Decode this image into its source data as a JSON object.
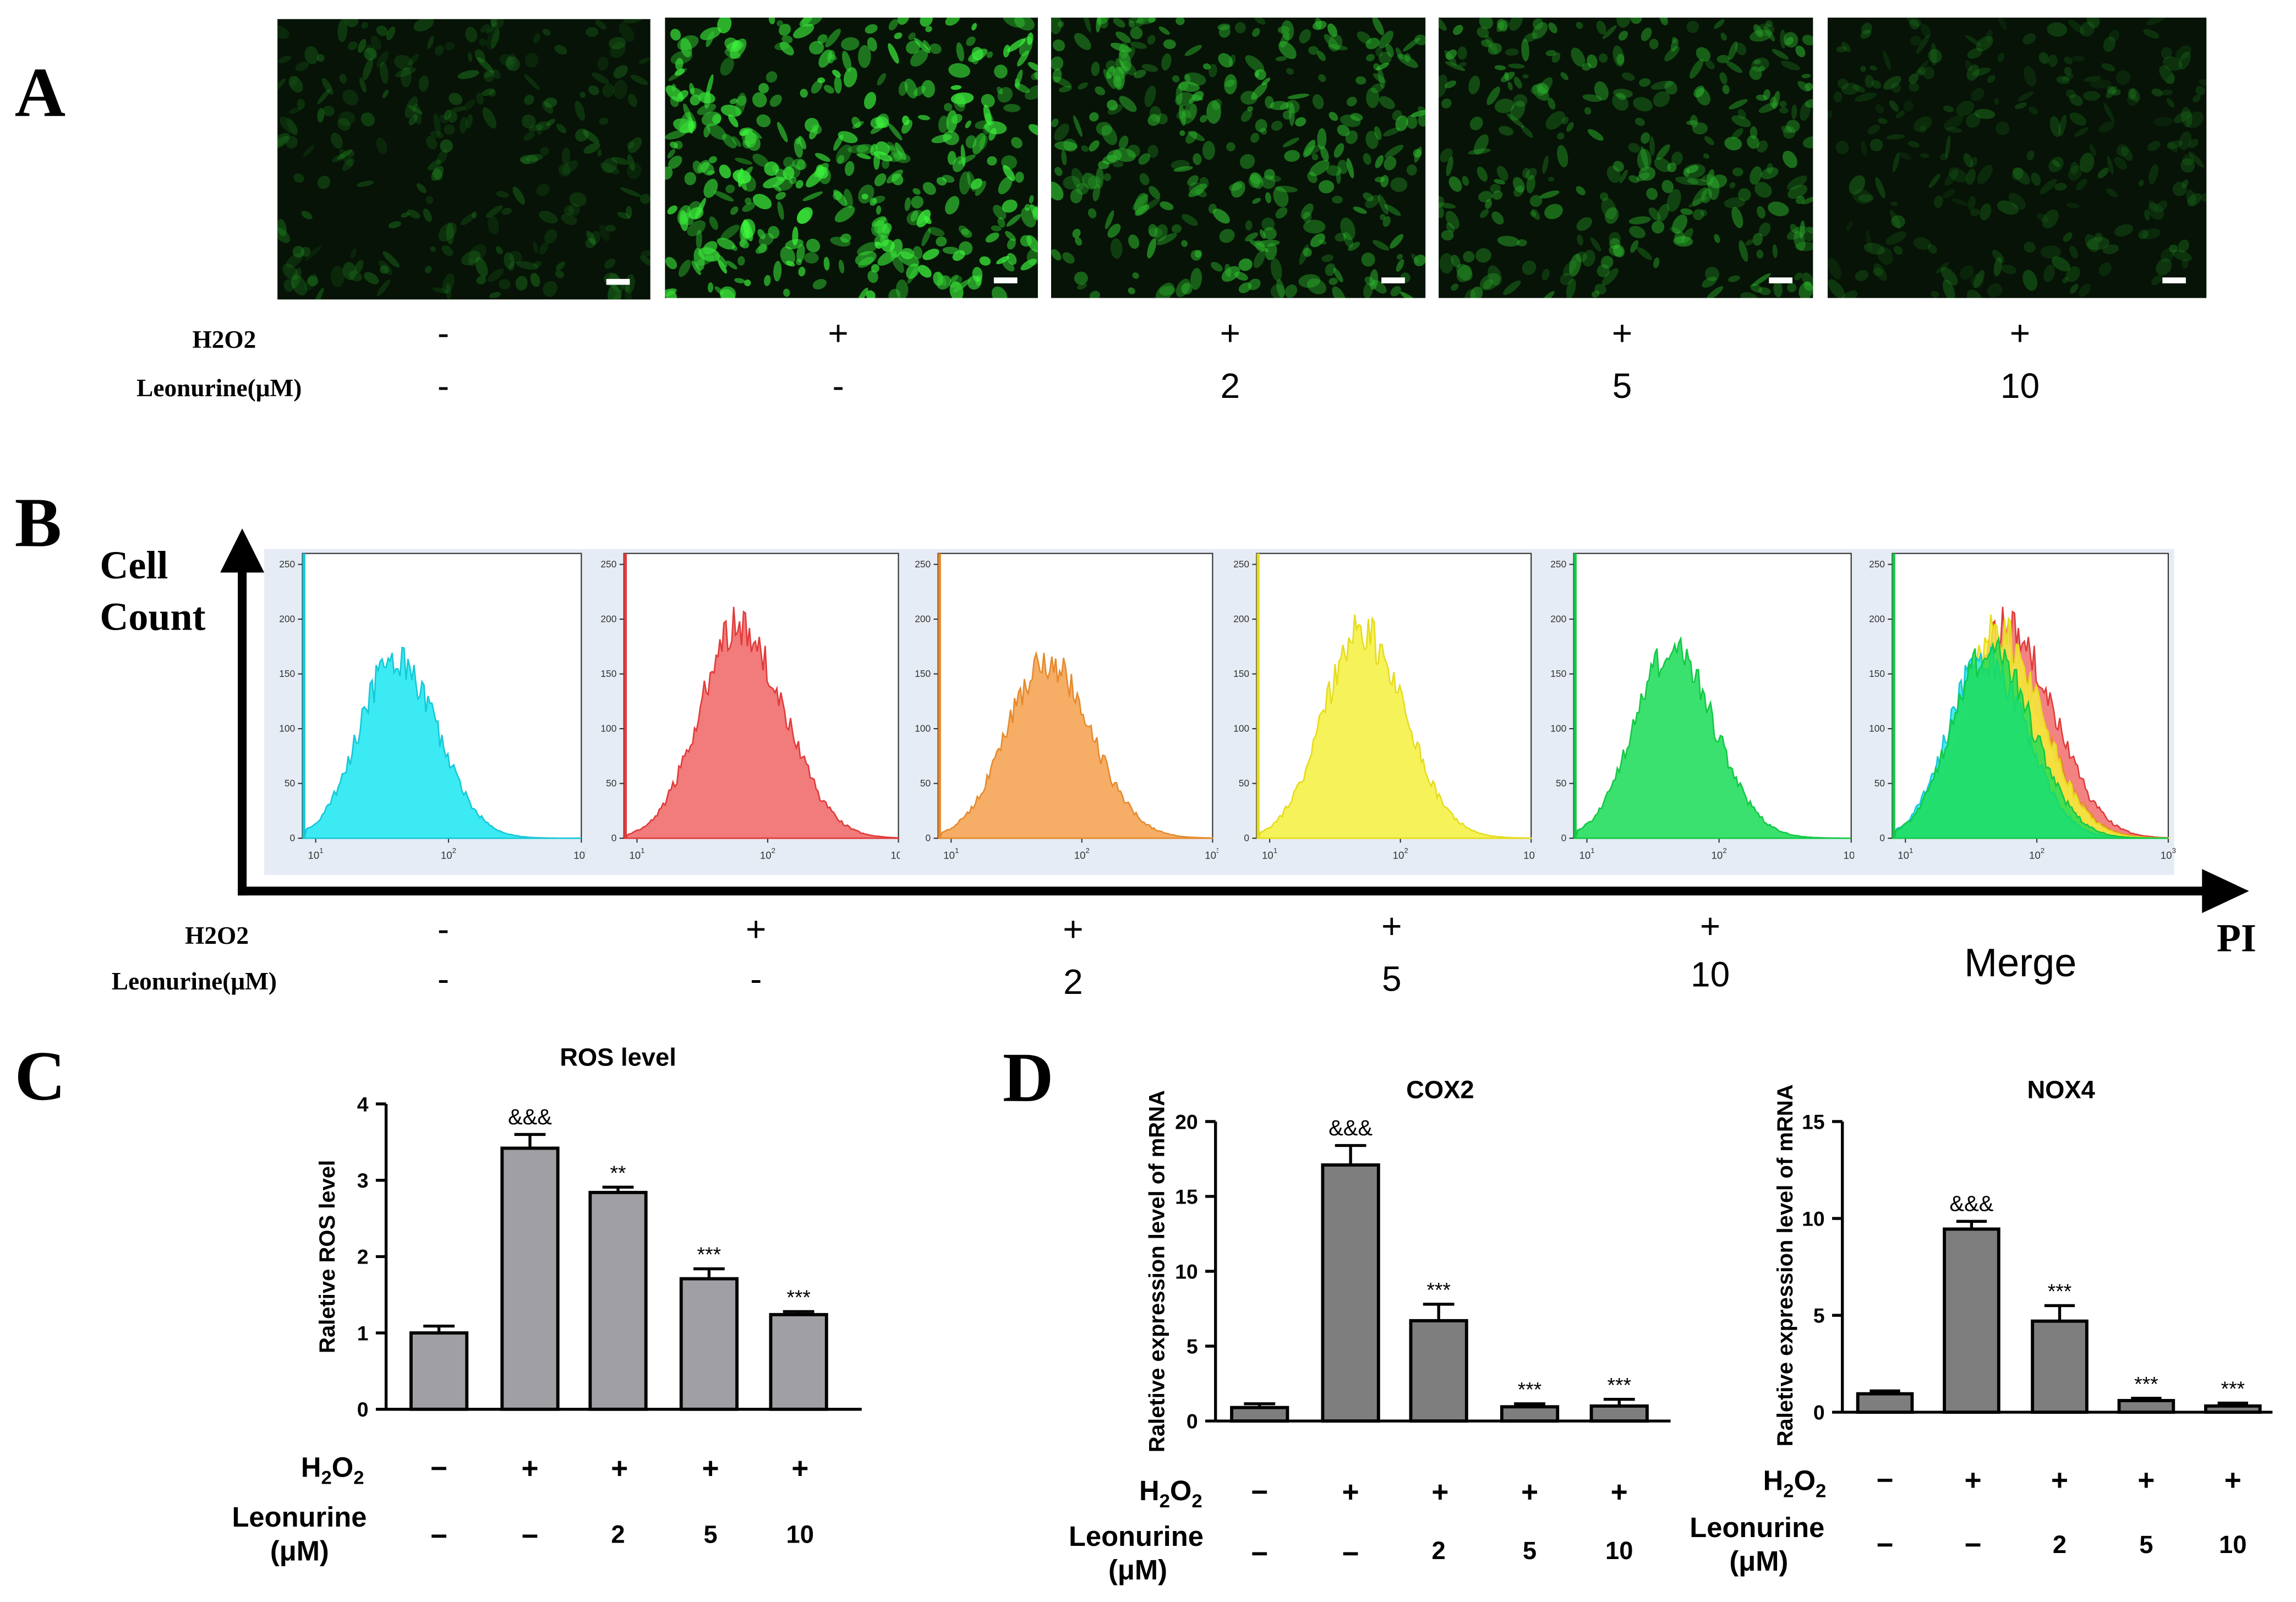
{
  "panel_labels": {
    "a": "A",
    "b": "B",
    "c": "C",
    "d": "D"
  },
  "colors": {
    "micrograph_bg": "#061306",
    "cell_green": "#3ee63e",
    "bar_c": "#a0a0a4",
    "bar_d": "#7e7e7e",
    "hist_cyan": "#19e6f0",
    "hist_red": "#f06464",
    "hist_orange": "#f5a04b",
    "hist_yellow": "#f5f03c",
    "hist_green": "#19dc55"
  },
  "panel_a": {
    "images": [
      {
        "name": "control",
        "brightness": 0.25
      },
      {
        "name": "h2o2",
        "brightness": 0.85
      },
      {
        "name": "h2o2-leo2",
        "brightness": 0.6
      },
      {
        "name": "h2o2-leo5",
        "brightness": 0.5
      },
      {
        "name": "h2o2-leo10",
        "brightness": 0.22
      }
    ],
    "row_labels": {
      "h2o2": "H2O2",
      "leonurine": "Leonurine(μM)"
    },
    "h2o2": [
      "-",
      "+",
      "+",
      "+",
      "+"
    ],
    "leonurine": [
      "-",
      "-",
      "2",
      "5",
      "10"
    ]
  },
  "panel_b": {
    "y_axis_label_line1": "Cell",
    "y_axis_label_line2": "Count",
    "x_axis_label": "PI",
    "merge_label": "Merge",
    "row_labels": {
      "h2o2": "H2O2",
      "leonurine": "Leonurine(μM)"
    },
    "h2o2": [
      "-",
      "+",
      "+",
      "+",
      "+"
    ],
    "leonurine": [
      "-",
      "-",
      "2",
      "5",
      "10"
    ],
    "chart_data": {
      "type": "area",
      "y_ticks": [
        "0",
        "50",
        "100",
        "150",
        "200",
        "250"
      ],
      "x_ticks_base": "10",
      "x_ticks_exp": [
        "1",
        "2",
        "3"
      ],
      "ylim": [
        0,
        260
      ],
      "xlim_log10": [
        0.9,
        3.0
      ],
      "series": [
        {
          "peak_log": 1.6,
          "peak": 165,
          "width": 0.27
        },
        {
          "peak_log": 1.78,
          "peak": 195,
          "width": 0.3
        },
        {
          "peak_log": 1.72,
          "peak": 162,
          "width": 0.3
        },
        {
          "peak_log": 1.7,
          "peak": 188,
          "width": 0.29
        },
        {
          "peak_log": 1.64,
          "peak": 172,
          "width": 0.28
        }
      ]
    }
  },
  "panel_c": {
    "chart_data": {
      "type": "bar",
      "title": "ROS level",
      "ylabel": "Raletive ROS level",
      "ylim": [
        0,
        4
      ],
      "y_ticks": [
        "0",
        "1",
        "2",
        "3",
        "4"
      ],
      "values": [
        1.0,
        3.42,
        2.84,
        1.71,
        1.24
      ],
      "errors": [
        0.09,
        0.18,
        0.07,
        0.13,
        0.04
      ],
      "annotations": [
        "",
        "&&&",
        "**",
        "***",
        "***"
      ]
    },
    "h2o2_label": "H",
    "h2o2_sub": "2",
    "h2o2_o": "O",
    "h2o2_sub2": "2",
    "leo_label_1": "Leonurine",
    "leo_label_2": "(μM)",
    "h2o2": [
      "−",
      "+",
      "+",
      "+",
      "+"
    ],
    "leonurine": [
      "−",
      "−",
      "2",
      "5",
      "10"
    ]
  },
  "panel_d": {
    "ylabel": "Raletive expression level of mRNA",
    "charts": [
      {
        "type": "bar",
        "title": "COX2",
        "ylim": [
          0,
          20
        ],
        "y_ticks": [
          "0",
          "5",
          "10",
          "15",
          "20"
        ],
        "values": [
          0.9,
          17.1,
          6.7,
          0.95,
          1.0
        ],
        "errors": [
          0.25,
          1.3,
          1.1,
          0.2,
          0.45
        ],
        "annotations": [
          "",
          "&&&",
          "***",
          "***",
          "***"
        ]
      },
      {
        "type": "bar",
        "title": "NOX4",
        "ylim": [
          0,
          15
        ],
        "y_ticks": [
          "0",
          "5",
          "10",
          "15"
        ],
        "values": [
          0.95,
          9.45,
          4.7,
          0.6,
          0.32
        ],
        "errors": [
          0.15,
          0.4,
          0.8,
          0.12,
          0.15
        ],
        "annotations": [
          "",
          "&&&",
          "***",
          "***",
          "***"
        ]
      }
    ],
    "h2o2_label": "H",
    "h2o2_sub": "2",
    "h2o2_o": "O",
    "h2o2_sub2": "2",
    "leo_label_1": "Leonurine",
    "leo_label_2": "(μM)",
    "h2o2": [
      "−",
      "+",
      "+",
      "+",
      "+"
    ],
    "leonurine": [
      "−",
      "−",
      "2",
      "5",
      "10"
    ]
  }
}
